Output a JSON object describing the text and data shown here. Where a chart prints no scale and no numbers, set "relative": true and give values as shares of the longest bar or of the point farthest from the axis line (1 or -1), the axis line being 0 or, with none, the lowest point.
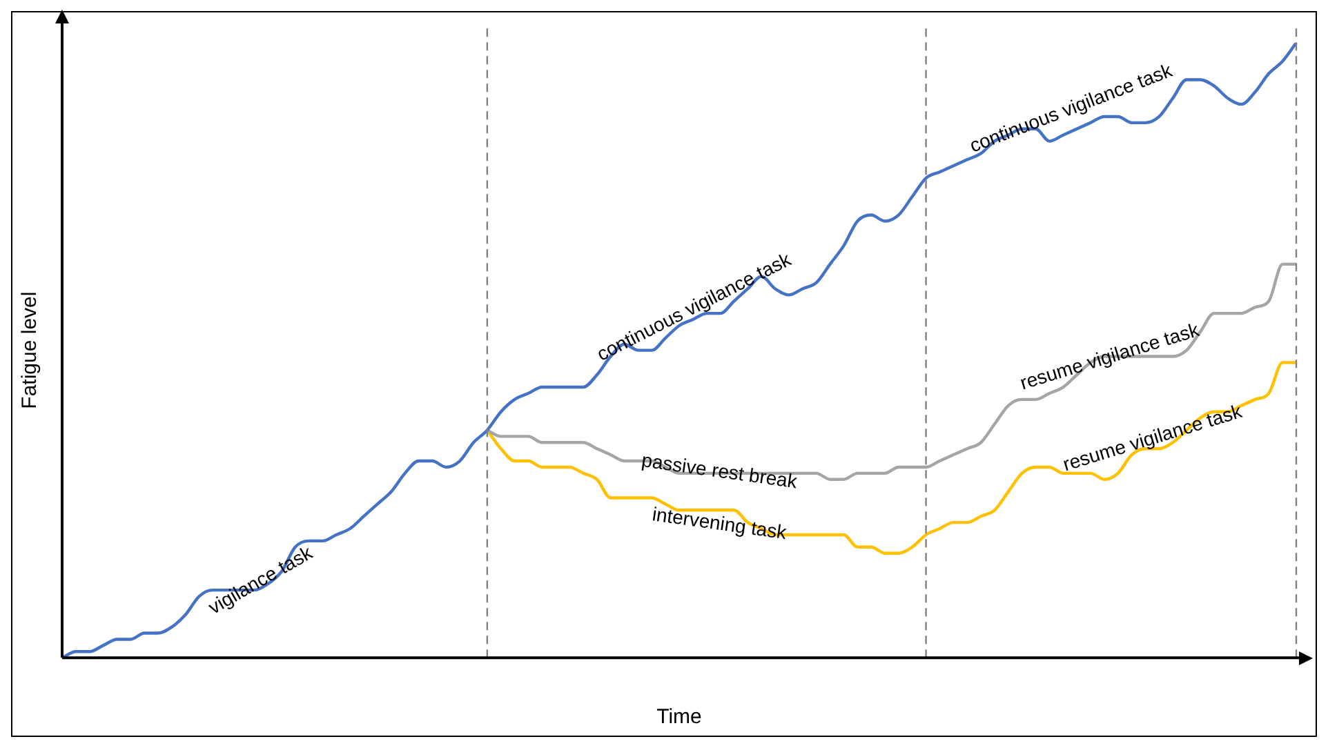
{
  "chart_data": {
    "type": "line",
    "relative": true,
    "xlabel": "Time",
    "ylabel": "Fatigue level",
    "categories": [
      null,
      null,
      null,
      null,
      null,
      null,
      null,
      null,
      null,
      null,
      null,
      null,
      null,
      null,
      null,
      null,
      null,
      null,
      null,
      null,
      null,
      null,
      null,
      null,
      null,
      null,
      null,
      null,
      null,
      null,
      null,
      null,
      null,
      null,
      null,
      null,
      null,
      null,
      null,
      null,
      null,
      null,
      null,
      null,
      null,
      null,
      null,
      null,
      null,
      null,
      null,
      null,
      null,
      null,
      null,
      null,
      null,
      null,
      null,
      null,
      null,
      null,
      null,
      null,
      null,
      null,
      null,
      null,
      null,
      null,
      null,
      null,
      null,
      null,
      null,
      null,
      null,
      null,
      null,
      null,
      null,
      null,
      null,
      null,
      null,
      null,
      null,
      null,
      null,
      null,
      null
    ],
    "series": [
      {
        "color": "#4472c4",
        "values": [
          0,
          0.01,
          0.01,
          0.02,
          0.03,
          0.03,
          0.04,
          0.04,
          0.05,
          0.07,
          0.1,
          0.11,
          0.11,
          0.11,
          0.11,
          0.12,
          0.14,
          0.18,
          0.19,
          0.19,
          0.2,
          0.21,
          0.23,
          0.25,
          0.27,
          0.3,
          0.32,
          0.32,
          0.31,
          0.32,
          0.35,
          0.37,
          0.4,
          0.42,
          0.43,
          0.44,
          0.44,
          0.44,
          0.44,
          0.46,
          0.49,
          0.51,
          0.5,
          0.5,
          0.52,
          0.54,
          0.55,
          0.56,
          0.56,
          0.58,
          0.6,
          0.62,
          0.6,
          0.59,
          0.6,
          0.61,
          0.64,
          0.67,
          0.71,
          0.72,
          0.71,
          0.72,
          0.75,
          0.78,
          0.79,
          0.8,
          0.81,
          0.82,
          0.84,
          0.85,
          0.86,
          0.86,
          0.84,
          0.85,
          0.86,
          0.87,
          0.88,
          0.88,
          0.87,
          0.87,
          0.88,
          0.91,
          0.94,
          0.94,
          0.93,
          0.91,
          0.9,
          0.92,
          0.95,
          0.97,
          1
        ]
      },
      {
        "color": "#a5a5a5",
        "values": [
          null,
          null,
          null,
          null,
          null,
          null,
          null,
          null,
          null,
          null,
          null,
          null,
          null,
          null,
          null,
          null,
          null,
          null,
          null,
          null,
          null,
          null,
          null,
          null,
          null,
          null,
          null,
          null,
          null,
          null,
          null,
          0.37,
          0.36,
          0.36,
          0.36,
          0.35,
          0.35,
          0.35,
          0.35,
          0.34,
          0.33,
          0.32,
          0.32,
          0.32,
          0.31,
          0.3,
          0.3,
          0.3,
          0.3,
          0.3,
          0.3,
          0.3,
          0.3,
          0.3,
          0.3,
          0.3,
          0.29,
          0.29,
          0.3,
          0.3,
          0.3,
          0.31,
          0.31,
          0.31,
          0.32,
          0.33,
          0.34,
          0.35,
          0.38,
          0.41,
          0.42,
          0.42,
          0.43,
          0.44,
          0.46,
          0.48,
          0.49,
          0.49,
          0.49,
          0.49,
          0.49,
          0.49,
          0.5,
          0.53,
          0.56,
          0.56,
          0.56,
          0.57,
          0.58,
          0.64,
          0.64
        ]
      },
      {
        "color": "#ffc000",
        "values": [
          null,
          null,
          null,
          null,
          null,
          null,
          null,
          null,
          null,
          null,
          null,
          null,
          null,
          null,
          null,
          null,
          null,
          null,
          null,
          null,
          null,
          null,
          null,
          null,
          null,
          null,
          null,
          null,
          null,
          null,
          null,
          0.37,
          0.34,
          0.32,
          0.32,
          0.31,
          0.31,
          0.31,
          0.3,
          0.29,
          0.26,
          0.26,
          0.26,
          0.26,
          0.25,
          0.24,
          0.24,
          0.24,
          0.24,
          0.24,
          0.22,
          0.21,
          0.2,
          0.2,
          0.2,
          0.2,
          0.2,
          0.2,
          0.18,
          0.18,
          0.17,
          0.17,
          0.18,
          0.2,
          0.21,
          0.22,
          0.22,
          0.23,
          0.24,
          0.27,
          0.3,
          0.31,
          0.31,
          0.3,
          0.3,
          0.3,
          0.29,
          0.3,
          0.33,
          0.34,
          0.34,
          0.35,
          0.37,
          0.39,
          0.4,
          0.4,
          0.41,
          0.42,
          0.43,
          0.48,
          0.48
        ]
      }
    ],
    "annotations": [
      "vigilance task",
      "continuous vigilance task",
      "continuous vigilance task",
      "passive rest break",
      "intervening task",
      "resume vigilance task",
      "resume vigilance task"
    ],
    "grid": false,
    "legend": false,
    "marker": "none",
    "line_style": "solid"
  }
}
